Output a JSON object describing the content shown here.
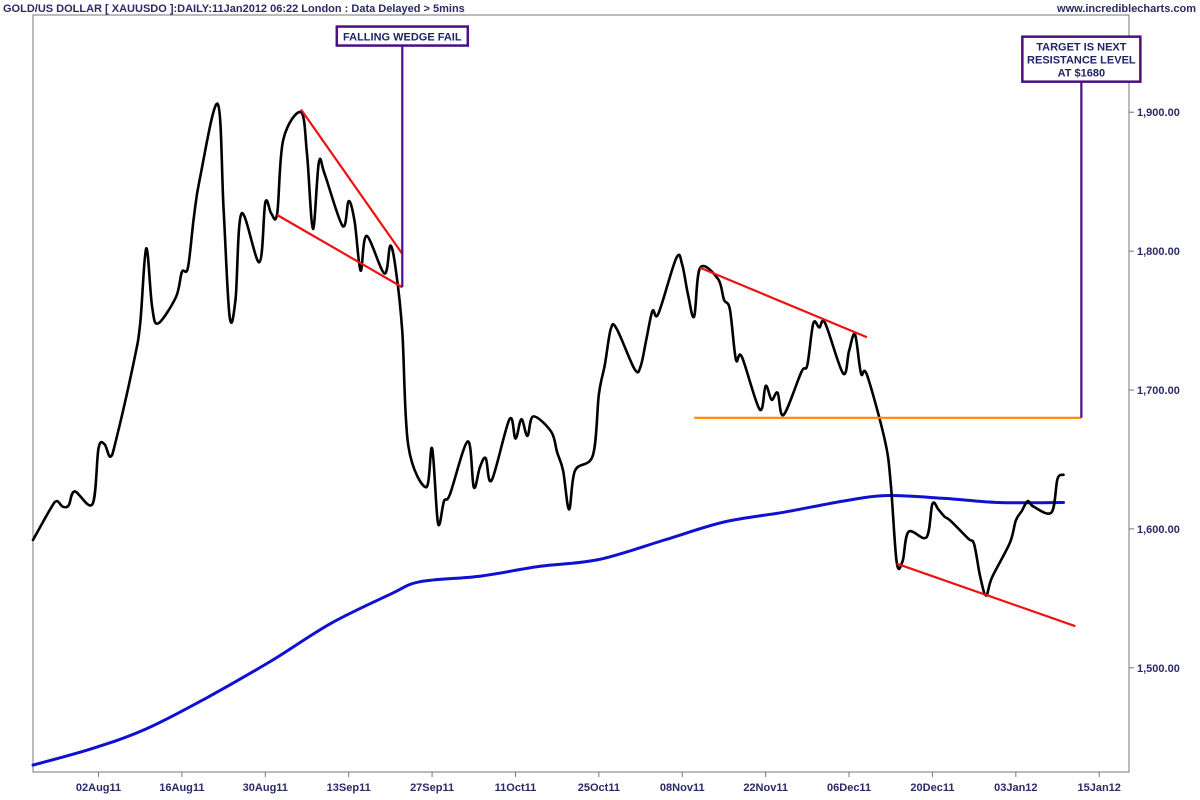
{
  "chart_data": {
    "type": "line",
    "title": "GOLD/US DOLLAR [ XAUUSDO ]:DAILY:11Jan2012 06:22 London : Data Delayed > 5mins",
    "source": "www.incrediblecharts.com",
    "x_ticks": [
      "02Aug11",
      "16Aug11",
      "30Aug11",
      "13Sep11",
      "27Sep11",
      "11Oct11",
      "25Oct11",
      "08Nov11",
      "22Nov11",
      "06Dec11",
      "20Dec11",
      "03Jan12",
      "15Jan12"
    ],
    "y_ticks": [
      "1,500.00",
      "1,600.00",
      "1,700.00",
      "1,800.00",
      "1,900.00"
    ],
    "ylim": [
      1425,
      1970
    ],
    "xlim": [
      "2011-07-22",
      "2012-01-22"
    ],
    "grid": false,
    "series": [
      {
        "values": [
          [
            "2011-07-22",
            1592
          ],
          [
            "2011-07-25",
            1615
          ],
          [
            "2011-07-26",
            1620
          ],
          [
            "2011-07-27",
            1616
          ],
          [
            "2011-07-28",
            1617
          ],
          [
            "2011-07-29",
            1627
          ],
          [
            "2011-08-01",
            1618
          ],
          [
            "2011-08-02",
            1658
          ],
          [
            "2011-08-03",
            1661
          ],
          [
            "2011-08-04",
            1652
          ],
          [
            "2011-08-05",
            1665
          ],
          [
            "2011-08-08",
            1722
          ],
          [
            "2011-08-09",
            1748
          ],
          [
            "2011-08-10",
            1802
          ],
          [
            "2011-08-11",
            1760
          ],
          [
            "2011-08-12",
            1748
          ],
          [
            "2011-08-15",
            1767
          ],
          [
            "2011-08-16",
            1785
          ],
          [
            "2011-08-17",
            1788
          ],
          [
            "2011-08-18",
            1824
          ],
          [
            "2011-08-19",
            1852
          ],
          [
            "2011-08-22",
            1906
          ],
          [
            "2011-08-23",
            1830
          ],
          [
            "2011-08-24",
            1753
          ],
          [
            "2011-08-25",
            1765
          ],
          [
            "2011-08-26",
            1827
          ],
          [
            "2011-08-29",
            1792
          ],
          [
            "2011-08-30",
            1835
          ],
          [
            "2011-08-31",
            1827
          ],
          [
            "2011-09-01",
            1827
          ],
          [
            "2011-09-02",
            1880
          ],
          [
            "2011-09-05",
            1900
          ],
          [
            "2011-09-06",
            1870
          ],
          [
            "2011-09-07",
            1816
          ],
          [
            "2011-09-08",
            1864
          ],
          [
            "2011-09-09",
            1855
          ],
          [
            "2011-09-12",
            1818
          ],
          [
            "2011-09-13",
            1836
          ],
          [
            "2011-09-14",
            1821
          ],
          [
            "2011-09-15",
            1786
          ],
          [
            "2011-09-16",
            1811
          ],
          [
            "2011-09-19",
            1784
          ],
          [
            "2011-09-20",
            1804
          ],
          [
            "2011-09-21",
            1784
          ],
          [
            "2011-09-22",
            1742
          ],
          [
            "2011-09-23",
            1660
          ],
          [
            "2011-09-26",
            1630
          ],
          [
            "2011-09-27",
            1658
          ],
          [
            "2011-09-28",
            1604
          ],
          [
            "2011-09-29",
            1620
          ],
          [
            "2011-09-30",
            1625
          ],
          [
            "2011-10-03",
            1663
          ],
          [
            "2011-10-04",
            1630
          ],
          [
            "2011-10-05",
            1644
          ],
          [
            "2011-10-06",
            1651
          ],
          [
            "2011-10-07",
            1635
          ],
          [
            "2011-10-10",
            1679
          ],
          [
            "2011-10-11",
            1665
          ],
          [
            "2011-10-12",
            1679
          ],
          [
            "2011-10-13",
            1667
          ],
          [
            "2011-10-14",
            1681
          ],
          [
            "2011-10-17",
            1670
          ],
          [
            "2011-10-18",
            1655
          ],
          [
            "2011-10-19",
            1642
          ],
          [
            "2011-10-20",
            1614
          ],
          [
            "2011-10-21",
            1642
          ],
          [
            "2011-10-24",
            1653
          ],
          [
            "2011-10-25",
            1697
          ],
          [
            "2011-10-26",
            1718
          ],
          [
            "2011-10-27",
            1744
          ],
          [
            "2011-10-28",
            1744
          ],
          [
            "2011-10-31",
            1715
          ],
          [
            "2011-11-01",
            1717
          ],
          [
            "2011-11-02",
            1737
          ],
          [
            "2011-11-03",
            1757
          ],
          [
            "2011-11-04",
            1755
          ],
          [
            "2011-11-07",
            1795
          ],
          [
            "2011-11-08",
            1790
          ],
          [
            "2011-11-09",
            1768
          ],
          [
            "2011-11-10",
            1753
          ],
          [
            "2011-11-11",
            1788
          ],
          [
            "2011-11-14",
            1780
          ],
          [
            "2011-11-15",
            1765
          ],
          [
            "2011-11-16",
            1758
          ],
          [
            "2011-11-17",
            1722
          ],
          [
            "2011-11-18",
            1724
          ],
          [
            "2011-11-21",
            1686
          ],
          [
            "2011-11-22",
            1703
          ],
          [
            "2011-11-23",
            1693
          ],
          [
            "2011-11-24",
            1698
          ],
          [
            "2011-11-25",
            1682
          ],
          [
            "2011-11-28",
            1713
          ],
          [
            "2011-11-29",
            1718
          ],
          [
            "2011-11-30",
            1748
          ],
          [
            "2011-12-01",
            1745
          ],
          [
            "2011-12-02",
            1748
          ],
          [
            "2011-12-05",
            1712
          ],
          [
            "2011-12-06",
            1728
          ],
          [
            "2011-12-07",
            1740
          ],
          [
            "2011-12-08",
            1712
          ],
          [
            "2011-12-09",
            1711
          ],
          [
            "2011-12-12",
            1664
          ],
          [
            "2011-12-13",
            1633
          ],
          [
            "2011-12-14",
            1576
          ],
          [
            "2011-12-15",
            1577
          ],
          [
            "2011-12-16",
            1598
          ],
          [
            "2011-12-19",
            1594
          ],
          [
            "2011-12-20",
            1618
          ],
          [
            "2011-12-21",
            1614
          ],
          [
            "2011-12-22",
            1609
          ],
          [
            "2011-12-23",
            1606
          ],
          [
            "2011-12-26",
            1593
          ],
          [
            "2011-12-27",
            1589
          ],
          [
            "2011-12-28",
            1566
          ],
          [
            "2011-12-29",
            1552
          ],
          [
            "2011-12-30",
            1565
          ],
          [
            "2012-01-02",
            1590
          ],
          [
            "2012-01-03",
            1606
          ],
          [
            "2012-01-04",
            1613
          ],
          [
            "2012-01-05",
            1620
          ],
          [
            "2012-01-06",
            1616
          ],
          [
            "2012-01-09",
            1612
          ],
          [
            "2012-01-10",
            1636
          ],
          [
            "2012-01-11",
            1639
          ]
        ],
        "color": "#000000"
      },
      {
        "values": [
          [
            "2011-07-22",
            1430
          ],
          [
            "2011-08-01",
            1442
          ],
          [
            "2011-08-10",
            1456
          ],
          [
            "2011-08-20",
            1478
          ],
          [
            "2011-08-31",
            1505
          ],
          [
            "2011-09-10",
            1532
          ],
          [
            "2011-09-20",
            1553
          ],
          [
            "2011-09-25",
            1562
          ],
          [
            "2011-10-05",
            1566
          ],
          [
            "2011-10-15",
            1573
          ],
          [
            "2011-10-25",
            1578
          ],
          [
            "2011-11-05",
            1592
          ],
          [
            "2011-11-15",
            1605
          ],
          [
            "2011-11-25",
            1612
          ],
          [
            "2011-12-05",
            1620
          ],
          [
            "2011-12-12",
            1624
          ],
          [
            "2011-12-22",
            1622
          ],
          [
            "2011-12-31",
            1619
          ],
          [
            "2012-01-11",
            1619
          ]
        ],
        "color": "#1010d0"
      }
    ],
    "trendlines": [
      {
        "color": "#ee1111",
        "points": [
          [
            "2011-09-05",
            1902
          ],
          [
            "2011-09-22",
            1798
          ]
        ]
      },
      {
        "color": "#ee1111",
        "points": [
          [
            "2011-09-01",
            1826
          ],
          [
            "2011-09-22",
            1774
          ]
        ]
      },
      {
        "color": "#ee1111",
        "points": [
          [
            "2011-11-11",
            1788
          ],
          [
            "2011-12-09",
            1738
          ]
        ]
      },
      {
        "color": "#ee1111",
        "points": [
          [
            "2011-12-14",
            1575
          ],
          [
            "2012-01-13",
            1530
          ]
        ]
      },
      {
        "color": "#ff8800",
        "points": [
          [
            "2011-11-10",
            1680
          ],
          [
            "2012-01-14",
            1680
          ]
        ]
      }
    ],
    "annotations": [
      {
        "text": [
          "FALLING WEDGE FAIL"
        ],
        "box_color": "#4a1080",
        "line_color": "#4a1080",
        "line_from": [
          "2011-09-22",
          1948
        ],
        "line_to": [
          "2011-09-22",
          1774
        ]
      },
      {
        "text": [
          "TARGET IS NEXT",
          "RESISTANCE LEVEL",
          "AT $1680"
        ],
        "box_color": "#4a1080",
        "line_color": "#4a1080",
        "line_from": [
          "2012-01-14",
          1922
        ],
        "line_to": [
          "2012-01-14",
          1680
        ]
      }
    ]
  }
}
